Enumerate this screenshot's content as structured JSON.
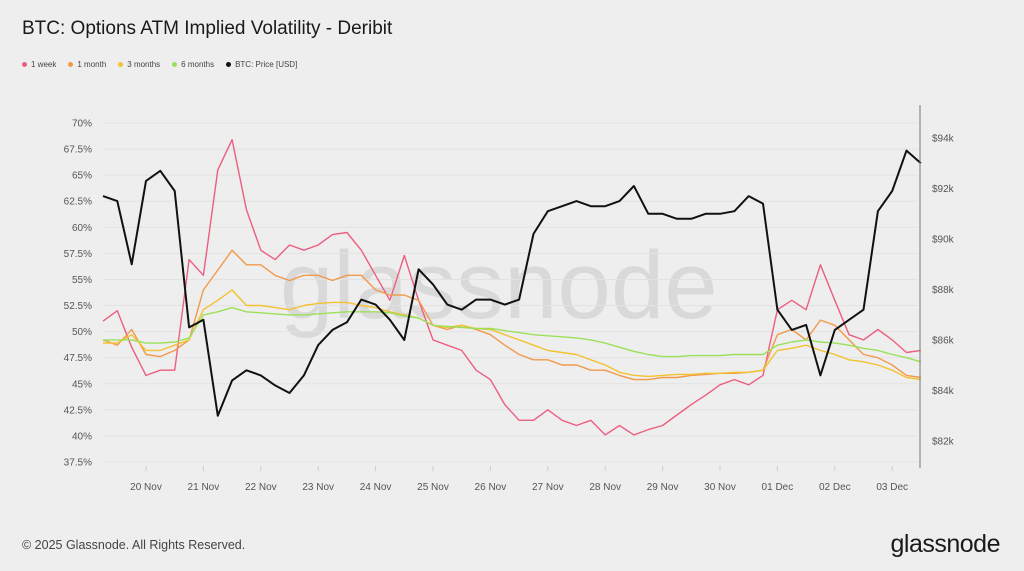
{
  "chart_data": {
    "type": "line",
    "title": "BTC: Options ATM Implied Volatility - Deribit",
    "legend_position": "top-left",
    "grid": true,
    "watermark": "glassnode",
    "x_ticks": [
      "20 Nov",
      "21 Nov",
      "22 Nov",
      "23 Nov",
      "24 Nov",
      "25 Nov",
      "26 Nov",
      "27 Nov",
      "28 Nov",
      "29 Nov",
      "30 Nov",
      "01 Dec",
      "02 Dec",
      "03 Dec"
    ],
    "y_left": {
      "ticks": [
        "70%",
        "67.5%",
        "65%",
        "62.5%",
        "60%",
        "57.5%",
        "55%",
        "52.5%",
        "50%",
        "47.5%",
        "45%",
        "42.5%",
        "40%",
        "37.5%"
      ],
      "range": [
        37.5,
        70
      ]
    },
    "y_right": {
      "ticks": [
        "$94k",
        "$92k",
        "$90k",
        "$88k",
        "$86k",
        "$84k",
        "$82k"
      ],
      "range": [
        81,
        95
      ],
      "unit": "USD thousands"
    },
    "x": [
      "2025-11-19T06:00",
      "2025-11-19T12:00",
      "2025-11-19T18:00",
      "2025-11-20T00:00",
      "2025-11-20T06:00",
      "2025-11-20T12:00",
      "2025-11-20T18:00",
      "2025-11-21T00:00",
      "2025-11-21T06:00",
      "2025-11-21T12:00",
      "2025-11-21T18:00",
      "2025-11-22T00:00",
      "2025-11-22T06:00",
      "2025-11-22T12:00",
      "2025-11-22T18:00",
      "2025-11-23T00:00",
      "2025-11-23T06:00",
      "2025-11-23T12:00",
      "2025-11-23T18:00",
      "2025-11-24T00:00",
      "2025-11-24T06:00",
      "2025-11-24T12:00",
      "2025-11-24T18:00",
      "2025-11-25T00:00",
      "2025-11-25T06:00",
      "2025-11-25T12:00",
      "2025-11-25T18:00",
      "2025-11-26T00:00",
      "2025-11-26T06:00",
      "2025-11-26T12:00",
      "2025-11-26T18:00",
      "2025-11-27T00:00",
      "2025-11-27T06:00",
      "2025-11-27T12:00",
      "2025-11-27T18:00",
      "2025-11-28T00:00",
      "2025-11-28T06:00",
      "2025-11-28T12:00",
      "2025-11-28T18:00",
      "2025-11-29T00:00",
      "2025-11-29T06:00",
      "2025-11-29T12:00",
      "2025-11-29T18:00",
      "2025-11-30T00:00",
      "2025-11-30T06:00",
      "2025-11-30T12:00",
      "2025-11-30T18:00",
      "2025-12-01T00:00",
      "2025-12-01T06:00",
      "2025-12-01T12:00",
      "2025-12-01T18:00",
      "2025-12-02T00:00",
      "2025-12-02T06:00",
      "2025-12-02T12:00",
      "2025-12-02T18:00",
      "2025-12-03T00:00",
      "2025-12-03T06:00",
      "2025-12-03T12:00"
    ],
    "series": [
      {
        "name": "1 week",
        "axis": "left",
        "color": "#ec5f7e",
        "values": [
          51,
          52,
          48.5,
          45.8,
          46.3,
          46.3,
          56.9,
          55.4,
          65.5,
          68.4,
          61.7,
          57.8,
          56.9,
          58.3,
          57.8,
          58.3,
          59.3,
          59.5,
          57.8,
          55.4,
          53,
          57.3,
          53,
          49.2,
          48.7,
          48.2,
          46.3,
          45.4,
          43,
          41.5,
          41.5,
          42.5,
          41.5,
          41,
          41.5,
          40.1,
          41,
          40.1,
          40.6,
          41,
          42,
          43,
          43.9,
          44.9,
          45.4,
          44.9,
          45.8,
          52.1,
          53,
          52.1,
          56.4,
          53,
          49.7,
          49.2,
          50.2,
          49.2,
          48,
          48.2
        ]
      },
      {
        "name": "1 month",
        "axis": "left",
        "color": "#f2994a",
        "values": [
          49.2,
          48.7,
          50.2,
          47.8,
          47.6,
          48.2,
          49.2,
          54,
          55.9,
          57.8,
          56.4,
          56.4,
          55.4,
          54.9,
          55.4,
          55.4,
          54.9,
          55.4,
          55.4,
          54,
          53.5,
          53.5,
          53,
          50.6,
          50.2,
          50.6,
          50.2,
          49.7,
          48.7,
          47.8,
          47.3,
          47.3,
          46.8,
          46.8,
          46.3,
          46.3,
          45.8,
          45.4,
          45.4,
          45.6,
          45.6,
          45.8,
          45.9,
          46,
          46,
          46.1,
          46.3,
          49.7,
          50.2,
          49.2,
          51.1,
          50.6,
          49.2,
          47.8,
          47.5,
          46.8,
          45.8,
          45.6
        ]
      },
      {
        "name": "3 months",
        "axis": "left",
        "color": "#f2c230",
        "values": [
          48.9,
          48.9,
          49.7,
          48.2,
          48.2,
          48.7,
          49.2,
          52.1,
          53,
          54,
          52.5,
          52.5,
          52.3,
          52.1,
          52.5,
          52.7,
          52.8,
          52.8,
          52.5,
          52.3,
          51.9,
          51.6,
          51.3,
          50.6,
          50.4,
          50.6,
          50.3,
          50.2,
          49.7,
          49.2,
          48.7,
          48.2,
          48,
          47.8,
          47.3,
          46.8,
          46.1,
          45.8,
          45.7,
          45.8,
          45.9,
          45.9,
          46,
          46,
          46.1,
          46.1,
          46.3,
          48.2,
          48.4,
          48.7,
          48.2,
          47.8,
          47.3,
          47.1,
          46.8,
          46.3,
          45.6,
          45.4
        ]
      },
      {
        "name": "6 months",
        "axis": "left",
        "color": "#9be05a",
        "values": [
          49.2,
          49.2,
          49.2,
          48.9,
          48.9,
          49,
          49.4,
          51.6,
          51.9,
          52.3,
          51.9,
          51.8,
          51.7,
          51.6,
          51.6,
          51.7,
          51.8,
          51.9,
          51.9,
          51.9,
          51.8,
          51.5,
          51.3,
          50.6,
          50.5,
          50.4,
          50.3,
          50.3,
          50.1,
          49.9,
          49.7,
          49.6,
          49.5,
          49.4,
          49.2,
          48.9,
          48.5,
          48.1,
          47.8,
          47.6,
          47.6,
          47.7,
          47.7,
          47.7,
          47.8,
          47.8,
          47.8,
          48.7,
          49,
          49.2,
          49,
          48.9,
          48.7,
          48.4,
          48.2,
          47.8,
          47.5,
          47.1
        ]
      },
      {
        "name": "BTC: Price [USD]",
        "axis": "right",
        "color": "#111111",
        "values": [
          91.7,
          91.5,
          89,
          92.3,
          92.7,
          91.9,
          86.5,
          86.8,
          83,
          84.4,
          84.8,
          84.6,
          84.2,
          83.9,
          84.6,
          85.8,
          86.4,
          86.7,
          87.6,
          87.4,
          86.8,
          86,
          88.8,
          88.2,
          87.4,
          87.2,
          87.6,
          87.6,
          87.4,
          87.6,
          90.2,
          91.1,
          91.3,
          91.5,
          91.3,
          91.3,
          91.5,
          92.1,
          91,
          91,
          90.8,
          90.8,
          91,
          91,
          91.1,
          91.7,
          91.4,
          87.2,
          86.4,
          86.6,
          84.6,
          86.4,
          86.8,
          87.2,
          91.1,
          91.9,
          93.5,
          93
        ]
      }
    ]
  },
  "footer": {
    "copyright": "© 2025 Glassnode. All Rights Reserved.",
    "logo": "glassnode"
  }
}
